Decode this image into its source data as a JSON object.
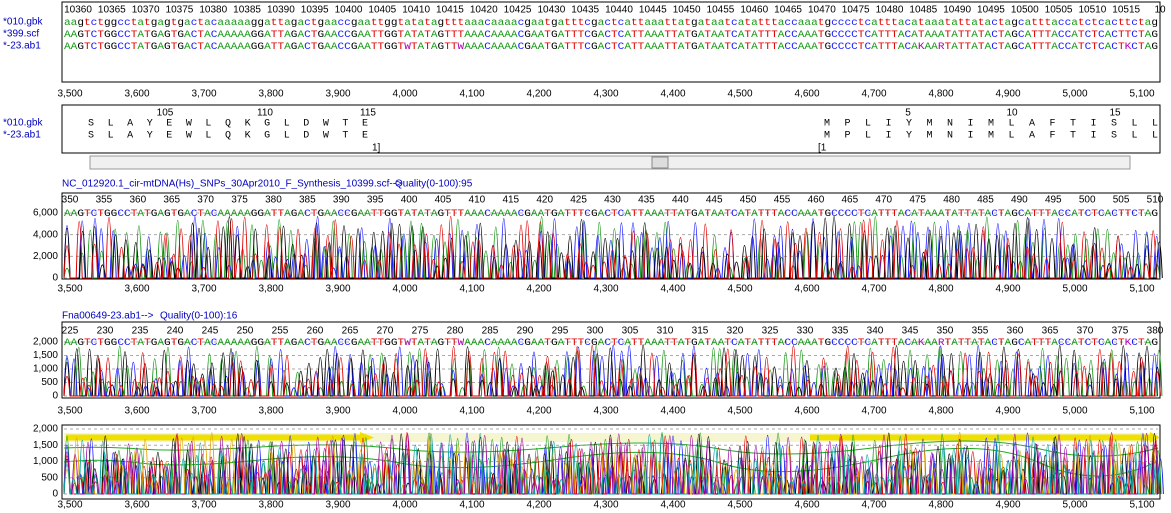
{
  "alignment": {
    "ruler": [
      "10360",
      "10365",
      "10370",
      "10375",
      "10380",
      "10385",
      "10390",
      "10395",
      "10400",
      "10405",
      "10410",
      "10415",
      "10420",
      "10425",
      "10430",
      "10435",
      "10440",
      "10445",
      "10450",
      "10455",
      "10460",
      "10465",
      "10470",
      "10475",
      "10480",
      "10485",
      "10490",
      "10495",
      "10500",
      "10505",
      "10510",
      "10515",
      "10"
    ],
    "rows": [
      {
        "name": "*010.gbk",
        "sequence": "aagtctggcctatgagtgactacaaaaaggattagactgaaccgaattggtatatagtttaaacaaaacgaatgatttcgactcattaaattatgataatcatatttaccaaatgcccctcatttacataaatattatactagcatttaccatctcacttctag"
      },
      {
        "name": "*399.scf",
        "sequence": "AAGTCTGGCCTATGAGTGACTACAAAAAGGATTAGACTGAACCGAATTGGTATATAGTTTAAACAAAACGAATGATTTCGACTCATTAAATTATGATAATCATATTTACCAAATGCCCCTCATTTACATAAATATTATACTAGCATTTACCATCTCACTTCTAG"
      },
      {
        "name": "*-23.ab1",
        "sequence": "AAGTCTGGCCTATGAGTGACTACAAAAAGGATTAGACTGAACCGAATTGGTWTATAGTTWAAACAAAACGAATGATTTCGACTCATTAAATTATGATAATCATATTTACCAAATGCCCCTCATTTACAKAARTATTATACTAGCATTTACCATCTCACTKCTAG"
      }
    ]
  },
  "x_axis": [
    "3,500",
    "3,600",
    "3,700",
    "3,800",
    "3,900",
    "4,000",
    "4,100",
    "4,200",
    "4,300",
    "4,400",
    "4,500",
    "4,600",
    "4,700",
    "4,800",
    "4,900",
    "5,000",
    "5,100"
  ],
  "translation": {
    "numbers": [
      "105",
      "110",
      "115",
      "5",
      "10",
      "15"
    ],
    "left_end": "1]",
    "right_start": "[1",
    "rows": [
      {
        "name": "*010.gbk",
        "left": "SLAYEWLQKGLDWTE",
        "right": "MPLIYMNIMLAFTISLL"
      },
      {
        "name": "*-23.ab1",
        "left": "SLAYEWLQKGLDWTE",
        "right": "MPLIYMNIMLAFTISLL"
      }
    ]
  },
  "traces": [
    {
      "title": "NC_012920.1_cir-mtDNA(Hs)_SNPs_30Apr2010_F_Synthesis_10399.scf-->",
      "quality": "Quality(0-100):95",
      "yticks": [
        "6,000",
        "4,000",
        "2,000",
        "0"
      ],
      "positions": [
        "350",
        "355",
        "360",
        "365",
        "370",
        "375",
        "380",
        "385",
        "390",
        "395",
        "400",
        "405",
        "410",
        "415",
        "420",
        "425",
        "430",
        "435",
        "440",
        "445",
        "450",
        "455",
        "460",
        "465",
        "470",
        "475",
        "480",
        "485",
        "490",
        "495",
        "500",
        "505",
        "510"
      ],
      "sequence": "AAGTCTGGCCTATGAGTGACTACAAAAAGGATTAGACTGAACCGAATTGGTATATAGTTTAAACAAAACGAATGATTTCGACTCATTAAATTATGATAATCATATTTACCAAATGCCCCTCATTTACATAAATATTATACTAGCATTTACCATCTCACTTCTAG"
    },
    {
      "title": "Fna00649-23.ab1-->",
      "quality": "Quality(0-100):16",
      "yticks": [
        "2,000",
        "1,500",
        "1,000",
        "500",
        "0"
      ],
      "positions": [
        "225",
        "230",
        "235",
        "240",
        "245",
        "250",
        "255",
        "260",
        "265",
        "270",
        "275",
        "280",
        "285",
        "290",
        "295",
        "300",
        "305",
        "310",
        "315",
        "320",
        "325",
        "330",
        "335",
        "340",
        "345",
        "350",
        "355",
        "360",
        "365",
        "370",
        "375",
        "380"
      ],
      "sequence": "AAGTCTGGCCTATGAGTGACTACAAAAAGGATTAGACTGAACCGAATTGGTWTATAGTTWAAACAAAACGAATGATTTCGACTCATTAAATTATGATAATCATATTTACCAAATGCCCCTCATTTACAKAARTATTATACTAGCATTTACCATCTCACTKCTAG"
    },
    {
      "yticks": [
        "2,000",
        "1,500",
        "1,000",
        "500",
        "0"
      ]
    }
  ]
}
